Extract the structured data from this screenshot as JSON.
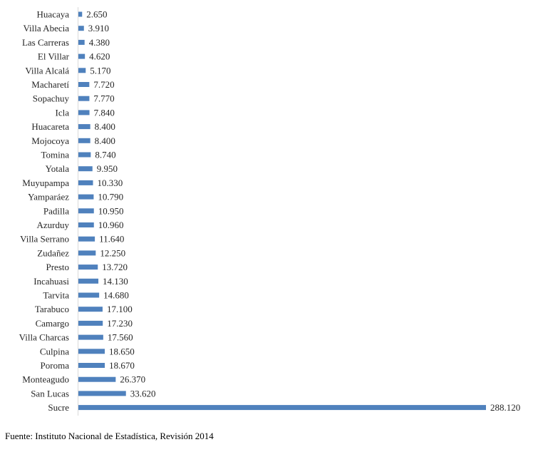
{
  "chart_data": {
    "type": "bar",
    "orientation": "horizontal",
    "categories": [
      "Huacaya",
      "Villa Abecia",
      "Las Carreras",
      "El Villar",
      "Villa Alcalá",
      "Macharetí",
      "Sopachuy",
      "Icla",
      "Huacareta",
      "Mojocoya",
      "Tomina",
      "Yotala",
      "Muyupampa",
      "Yamparáez",
      "Padilla",
      "Azurduy",
      "Villa Serrano",
      "Zudañez",
      "Presto",
      "Incahuasi",
      "Tarvita",
      "Tarabuco",
      "Camargo",
      "Villa Charcas",
      "Culpina",
      "Poroma",
      "Monteagudo",
      "San Lucas",
      "Sucre"
    ],
    "values": [
      2650,
      3910,
      4380,
      4620,
      5170,
      7720,
      7770,
      7840,
      8400,
      8400,
      8740,
      9950,
      10330,
      10790,
      10950,
      10960,
      11640,
      12250,
      13720,
      14130,
      14680,
      17100,
      17230,
      17560,
      18650,
      18670,
      26370,
      33620,
      288120
    ],
    "value_labels": [
      "2.650",
      "3.910",
      "4.380",
      "4.620",
      "5.170",
      "7.720",
      "7.770",
      "7.840",
      "8.400",
      "8.400",
      "8.740",
      "9.950",
      "10.330",
      "10.790",
      "10.950",
      "10.960",
      "11.640",
      "12.250",
      "13.720",
      "14.130",
      "14.680",
      "17.100",
      "17.230",
      "17.560",
      "18.650",
      "18.670",
      "26.370",
      "33.620",
      "288.120"
    ],
    "xlim": [
      0,
      288120
    ],
    "grid": false,
    "legend": "none",
    "bar_color": "#4f81bd",
    "axis_color": "#d9d9d9"
  },
  "source": "Fuente: Instituto Nacional de Estadística, Revisión 2014"
}
